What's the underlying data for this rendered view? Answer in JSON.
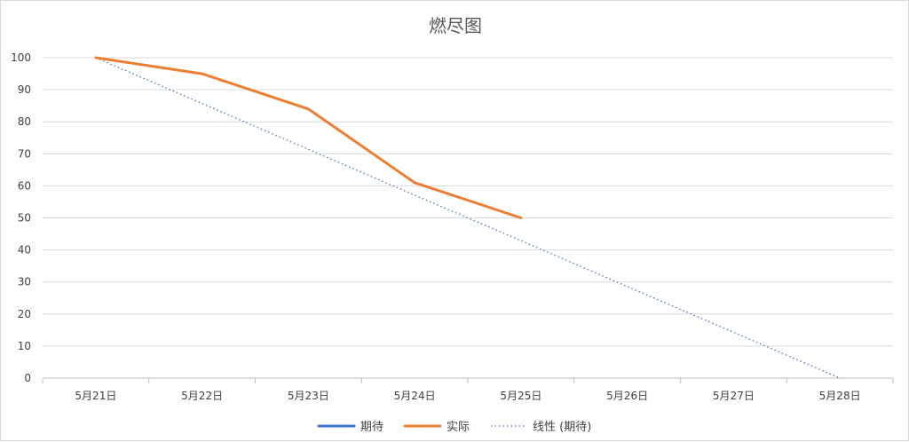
{
  "chart_data": {
    "type": "line",
    "title": "燃尽图",
    "xlabel": "",
    "ylabel": "",
    "categories": [
      "5月21日",
      "5月22日",
      "5月23日",
      "5月24日",
      "5月25日",
      "5月26日",
      "5月27日",
      "5月28日"
    ],
    "ylim": [
      0,
      100
    ],
    "yticks": [
      0,
      10,
      20,
      30,
      40,
      50,
      60,
      70,
      80,
      90,
      100
    ],
    "grid": true,
    "legend_position": "bottom",
    "series": [
      {
        "name": "期待",
        "color": "#4472c4",
        "style": "solid",
        "values": [
          null,
          null,
          null,
          null,
          null,
          null,
          null,
          null
        ]
      },
      {
        "name": "实际",
        "color": "#ed7d31",
        "style": "solid",
        "values": [
          100,
          95,
          84,
          61,
          50,
          null,
          null,
          null
        ]
      }
    ],
    "trendline": {
      "name": "线性 (期待)",
      "color": "#4472c4",
      "style": "dotted",
      "values": [
        100,
        85.7,
        71.4,
        57.1,
        42.9,
        28.6,
        14.3,
        0
      ]
    }
  }
}
